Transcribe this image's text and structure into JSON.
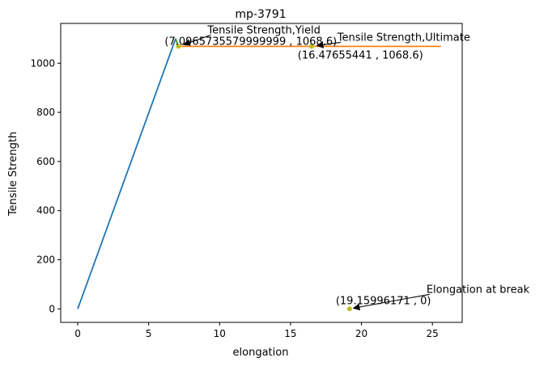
{
  "chart_data": {
    "type": "line",
    "title": "mp-3791",
    "xlabel": "elongation",
    "ylabel": "Tensile Strength",
    "xlim": [
      -1.2,
      27.1
    ],
    "ylim": [
      -55,
      1162
    ],
    "x_ticks": [
      0,
      5,
      10,
      15,
      20,
      25
    ],
    "y_ticks": [
      0,
      200,
      400,
      600,
      800,
      1000
    ],
    "grid": false,
    "legend": "none",
    "series": [
      {
        "color": "#1f77b4",
        "x": [
          0,
          6.9
        ],
        "y": [
          0,
          1100
        ]
      },
      {
        "color": "#2ca02c",
        "x": [
          6.9,
          7.1
        ],
        "y": [
          1100,
          1068.6
        ]
      },
      {
        "color": "#ff7f0e",
        "x": [
          7.1,
          25.6
        ],
        "y": [
          1068.6,
          1068.6
        ]
      }
    ],
    "points": [
      {
        "x": 7.096573558,
        "y": 1068.6,
        "color": "#bcbd22"
      },
      {
        "x": 16.47655441,
        "y": 1068.6,
        "color": "#bcbd22"
      },
      {
        "x": 19.15996171,
        "y": 0,
        "color": "#bcbd22"
      }
    ],
    "annotations": [
      {
        "label": "Tensile Strength,Yield",
        "value_text": "(7.0965735579999999 , 1068.6)",
        "x": 7.096573558,
        "y": 1068.6
      },
      {
        "label": "Tensile Strength,Ultimate",
        "value_text": "(16.47655441 , 1068.6)",
        "x": 16.47655441,
        "y": 1068.6
      },
      {
        "label": "Elongation at break",
        "value_text": "(19.15996171 , 0)",
        "x": 19.15996171,
        "y": 0
      }
    ]
  }
}
